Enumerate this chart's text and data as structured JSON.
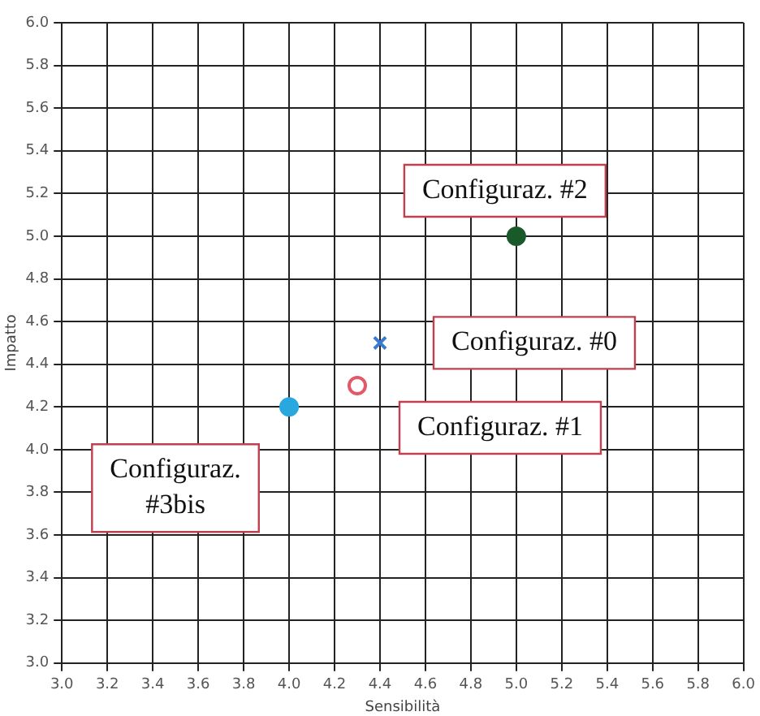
{
  "chart_data": {
    "type": "scatter",
    "xlabel": "Sensibilità",
    "ylabel": "Impatto",
    "xlim": [
      3.0,
      6.0
    ],
    "xticks": [
      {
        "value": 3.0,
        "label": "3.0"
      },
      {
        "value": 3.2,
        "label": "3.2"
      },
      {
        "value": 3.4,
        "label": "3.4"
      },
      {
        "value": 3.6,
        "label": "3.6"
      },
      {
        "value": 3.8,
        "label": "3.8"
      },
      {
        "value": 4.0,
        "label": "4.0"
      },
      {
        "value": 4.2,
        "label": "4.2"
      },
      {
        "value": 4.4,
        "label": "4.4"
      },
      {
        "value": 4.6,
        "label": "4.6"
      },
      {
        "value": 4.8,
        "label": "4.8"
      },
      {
        "value": 5.0,
        "label": "5.0"
      },
      {
        "value": 5.2,
        "label": "5.2"
      },
      {
        "value": 5.4,
        "label": "5.4"
      },
      {
        "value": 5.6,
        "label": "5.6"
      },
      {
        "value": 5.8,
        "label": "5.8"
      },
      {
        "value": 6.0,
        "label": "6.0"
      }
    ],
    "ylim": [
      3.0,
      6.0
    ],
    "yticks": [
      {
        "value": 3.0,
        "label": "3.0"
      },
      {
        "value": 3.2,
        "label": "3.2"
      },
      {
        "value": 3.4,
        "label": "3.4"
      },
      {
        "value": 3.6,
        "label": "3.6"
      },
      {
        "value": 3.8,
        "label": "3.8"
      },
      {
        "value": 4.0,
        "label": "4.0"
      },
      {
        "value": 4.2,
        "label": "4.2"
      },
      {
        "value": 4.4,
        "label": "4.4"
      },
      {
        "value": 4.6,
        "label": "4.6"
      },
      {
        "value": 4.8,
        "label": "4.8"
      },
      {
        "value": 5.0,
        "label": "5.0"
      },
      {
        "value": 5.2,
        "label": "5.2"
      },
      {
        "value": 5.4,
        "label": "5.4"
      },
      {
        "value": 5.6,
        "label": "5.6"
      },
      {
        "value": 5.8,
        "label": "5.8"
      },
      {
        "value": 6.0,
        "label": "6.0"
      }
    ],
    "grid": true,
    "series": [
      {
        "color": "#29a8e0",
        "marker": "circle",
        "x": [
          4.0
        ],
        "values": [
          4.2
        ]
      },
      {
        "color": "#e05a6a",
        "marker": "circle",
        "x": [
          4.3
        ],
        "values": [
          4.3
        ]
      },
      {
        "color": "#3a7ad0",
        "marker": "cross",
        "x": [
          4.4
        ],
        "values": [
          4.5
        ]
      },
      {
        "color": "#1a5a2a",
        "marker": "circle",
        "x": [
          5.0
        ],
        "values": [
          5.0
        ]
      }
    ],
    "annotations": [
      {
        "text": "Configuraz. #3bis",
        "x": 4.0,
        "y": 4.2
      },
      {
        "text": "Configuraz. #1",
        "x": 4.3,
        "y": 4.3
      },
      {
        "text": "Configuraz. #0",
        "x": 4.4,
        "y": 4.5
      },
      {
        "text": "Configuraz. #2",
        "x": 5.0,
        "y": 5.0
      }
    ]
  }
}
